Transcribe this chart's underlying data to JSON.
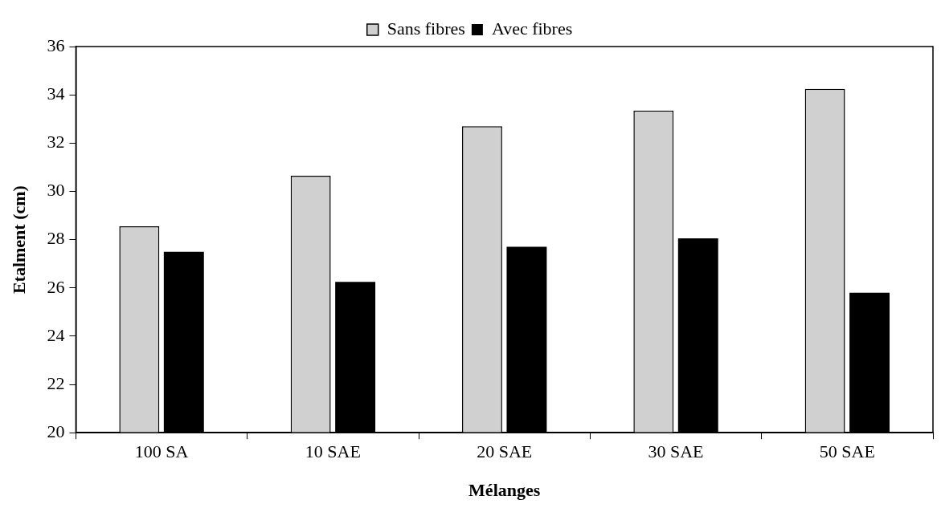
{
  "chart_data": {
    "type": "bar",
    "xlabel": "Mélanges",
    "ylabel": "Etalment (cm)",
    "categories": [
      "100 SA",
      "10 SAE",
      "20 SAE",
      "30 SAE",
      "50 SAE"
    ],
    "series": [
      {
        "name": "Sans fibres",
        "color": "#d0d0d0",
        "values": [
          28.55,
          30.65,
          32.7,
          33.35,
          34.25
        ]
      },
      {
        "name": "Avec fibres",
        "color": "#000000",
        "values": [
          27.5,
          26.25,
          27.7,
          28.05,
          25.8
        ]
      }
    ],
    "ylim": [
      20,
      36
    ],
    "yticks": [
      20,
      22,
      24,
      26,
      28,
      30,
      32,
      34,
      36
    ],
    "grid": false,
    "legend": "top"
  }
}
